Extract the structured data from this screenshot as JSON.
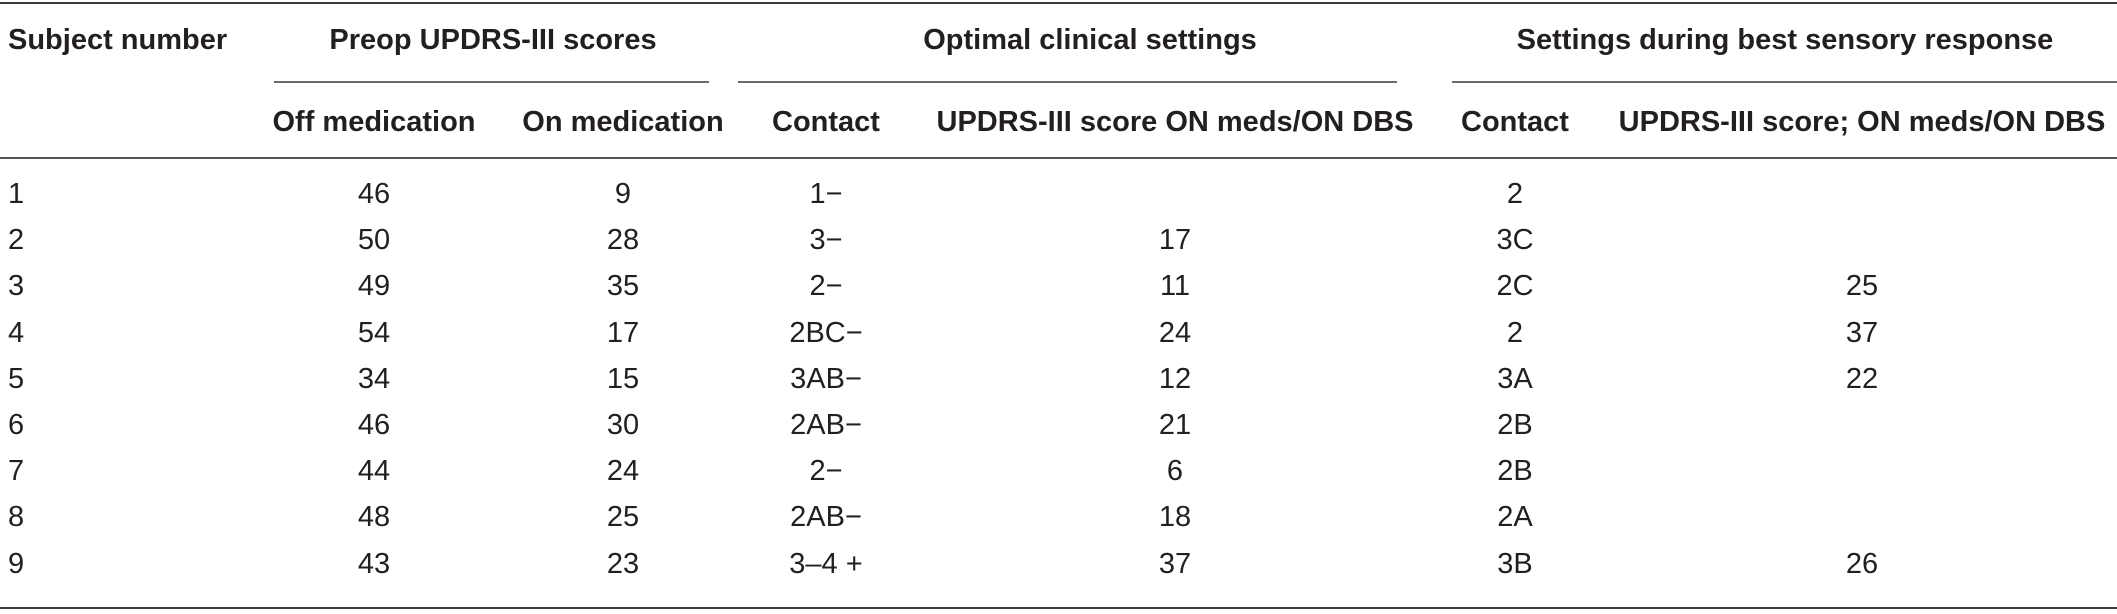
{
  "headers": {
    "subject_number": "Subject number",
    "preop_group": "Preop UPDRS-III scores",
    "optimal_group": "Optimal clinical settings",
    "sensory_group": "Settings during best sensory response",
    "off_medication": "Off medication",
    "on_medication": "On medication",
    "contact_optimal": "Contact",
    "updrs_optimal": "UPDRS-III score ON meds/ON DBS",
    "contact_sensory": "Contact",
    "updrs_sensory": "UPDRS-III score; ON meds/ON DBS"
  },
  "rows": [
    {
      "subject": "1",
      "off": "46",
      "on": "9",
      "contact_opt": "1−",
      "updrs_opt": "",
      "contact_sens": "2",
      "updrs_sens": ""
    },
    {
      "subject": "2",
      "off": "50",
      "on": "28",
      "contact_opt": "3−",
      "updrs_opt": "17",
      "contact_sens": "3C",
      "updrs_sens": ""
    },
    {
      "subject": "3",
      "off": "49",
      "on": "35",
      "contact_opt": "2−",
      "updrs_opt": "11",
      "contact_sens": "2C",
      "updrs_sens": "25"
    },
    {
      "subject": "4",
      "off": "54",
      "on": "17",
      "contact_opt": "2BC−",
      "updrs_opt": "24",
      "contact_sens": "2",
      "updrs_sens": "37"
    },
    {
      "subject": "5",
      "off": "34",
      "on": "15",
      "contact_opt": "3AB−",
      "updrs_opt": "12",
      "contact_sens": "3A",
      "updrs_sens": "22"
    },
    {
      "subject": "6",
      "off": "46",
      "on": "30",
      "contact_opt": "2AB−",
      "updrs_opt": "21",
      "contact_sens": "2B",
      "updrs_sens": ""
    },
    {
      "subject": "7",
      "off": "44",
      "on": "24",
      "contact_opt": "2−",
      "updrs_opt": "6",
      "contact_sens": "2B",
      "updrs_sens": ""
    },
    {
      "subject": "8",
      "off": "48",
      "on": "25",
      "contact_opt": "2AB−",
      "updrs_opt": "18",
      "contact_sens": "2A",
      "updrs_sens": ""
    },
    {
      "subject": "9",
      "off": "43",
      "on": "23",
      "contact_opt": "3–4 +",
      "updrs_opt": "37",
      "contact_sens": "3B",
      "updrs_sens": "26"
    }
  ]
}
